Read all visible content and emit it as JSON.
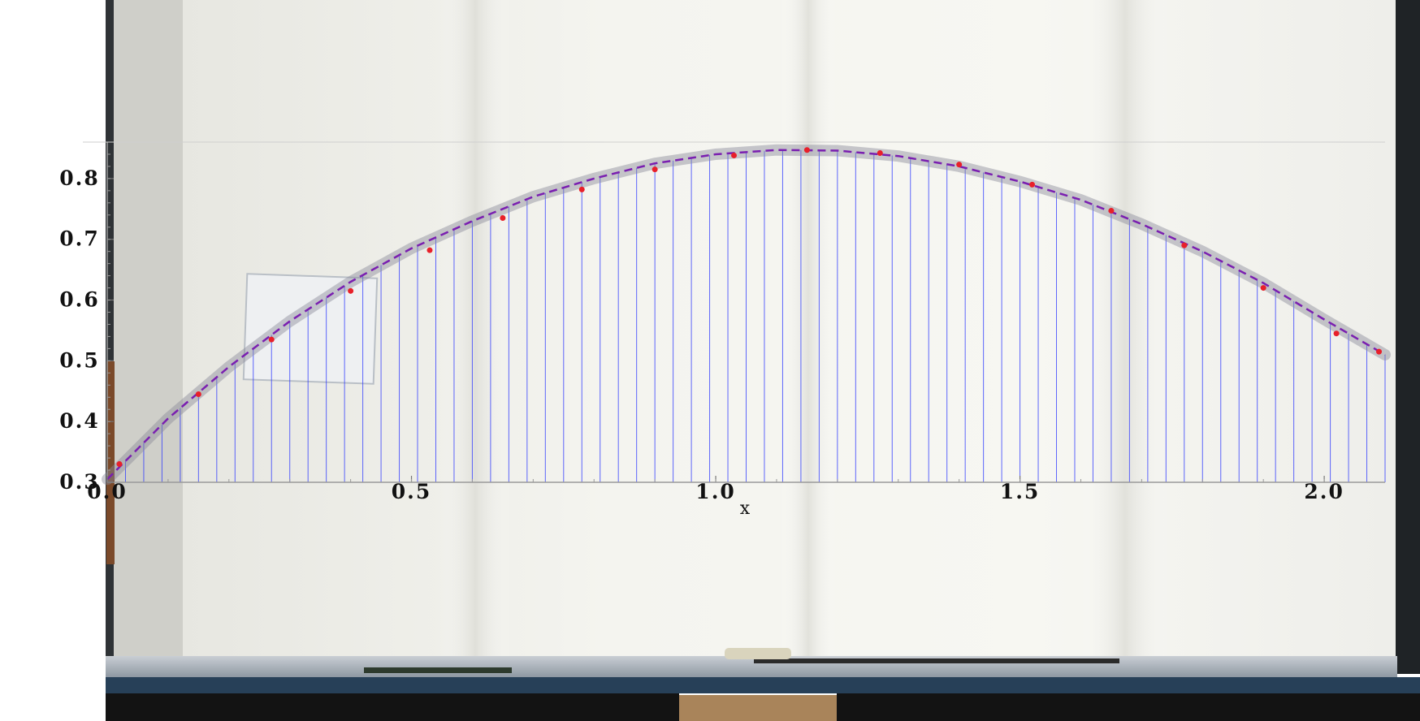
{
  "chart_data": {
    "type": "line",
    "xlabel": "x",
    "ylabel": "",
    "xlim": [
      0.0,
      2.1
    ],
    "ylim": [
      0.3,
      0.86
    ],
    "x_ticks": [
      "0.0",
      "0.5",
      "1.0",
      "1.5",
      "2.0"
    ],
    "x_tick_values": [
      0.0,
      0.5,
      1.0,
      1.5,
      2.0
    ],
    "y_ticks": [
      "0.3",
      "0.4",
      "0.5",
      "0.6",
      "0.7",
      "0.8"
    ],
    "y_tick_values": [
      0.3,
      0.4,
      0.5,
      0.6,
      0.7,
      0.8
    ],
    "grid": "vertical lines at sample points",
    "series": [
      {
        "style": "dashed",
        "color": "#7a1fb0",
        "x": [
          0.0,
          0.1,
          0.2,
          0.3,
          0.4,
          0.5,
          0.6,
          0.7,
          0.8,
          0.9,
          1.0,
          1.1,
          1.2,
          1.3,
          1.4,
          1.5,
          1.6,
          1.7,
          1.8,
          1.9,
          2.0,
          2.1
        ],
        "y": [
          0.305,
          0.405,
          0.49,
          0.565,
          0.63,
          0.685,
          0.73,
          0.77,
          0.8,
          0.825,
          0.84,
          0.847,
          0.846,
          0.837,
          0.82,
          0.795,
          0.765,
          0.725,
          0.68,
          0.628,
          0.568,
          0.51
        ]
      },
      {
        "style": "points",
        "color": "#e8202a",
        "x": [
          0.02,
          0.15,
          0.27,
          0.4,
          0.53,
          0.65,
          0.78,
          0.9,
          1.03,
          1.15,
          1.27,
          1.4,
          1.52,
          1.65,
          1.77,
          1.9,
          2.02,
          2.09
        ],
        "y": [
          0.33,
          0.445,
          0.535,
          0.615,
          0.682,
          0.735,
          0.782,
          0.815,
          0.838,
          0.847,
          0.842,
          0.823,
          0.79,
          0.747,
          0.69,
          0.62,
          0.545,
          0.515
        ]
      }
    ],
    "sample_lines_x": [
      0.0,
      0.03,
      0.06,
      0.09,
      0.12,
      0.15,
      0.18,
      0.21,
      0.24,
      0.27,
      0.3,
      0.33,
      0.36,
      0.39,
      0.42,
      0.45,
      0.48,
      0.51,
      0.54,
      0.57,
      0.6,
      0.63,
      0.66,
      0.69,
      0.72,
      0.75,
      0.78,
      0.81,
      0.84,
      0.87,
      0.9,
      0.93,
      0.96,
      0.99,
      1.02,
      1.05,
      1.08,
      1.11,
      1.14,
      1.17,
      1.2,
      1.23,
      1.26,
      1.29,
      1.32,
      1.35,
      1.38,
      1.41,
      1.44,
      1.47,
      1.5,
      1.53,
      1.56,
      1.59,
      1.62,
      1.65,
      1.68,
      1.71,
      1.74,
      1.77,
      1.8,
      1.83,
      1.86,
      1.89,
      1.92,
      1.95,
      1.98,
      2.01,
      2.04,
      2.07,
      2.1
    ]
  },
  "colors": {
    "sample_lines": "#2a36ff",
    "fit_curve": "#7a1fb0",
    "data_points": "#e8202a",
    "streak": "#8a8a9a"
  }
}
